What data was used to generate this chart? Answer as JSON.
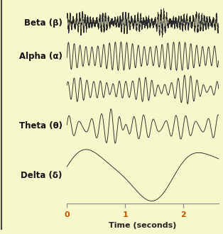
{
  "background_color": "#f7f7cc",
  "wave_color": "#2a2a2a",
  "label_color": "#111111",
  "tick_color": "#bb5500",
  "axis_color": "#888888",
  "xlabel": "Time (seconds)",
  "xlabel_color": "#222222",
  "xlim": [
    0,
    2.6
  ],
  "xticks": [
    0,
    1,
    2
  ],
  "labels": [
    "Beta (β)",
    "Alpha (α)",
    "Theta (θ)",
    "Delta (δ)"
  ],
  "label_fontsize": 8.5,
  "figsize": [
    3.14,
    3.3
  ],
  "dpi": 100
}
